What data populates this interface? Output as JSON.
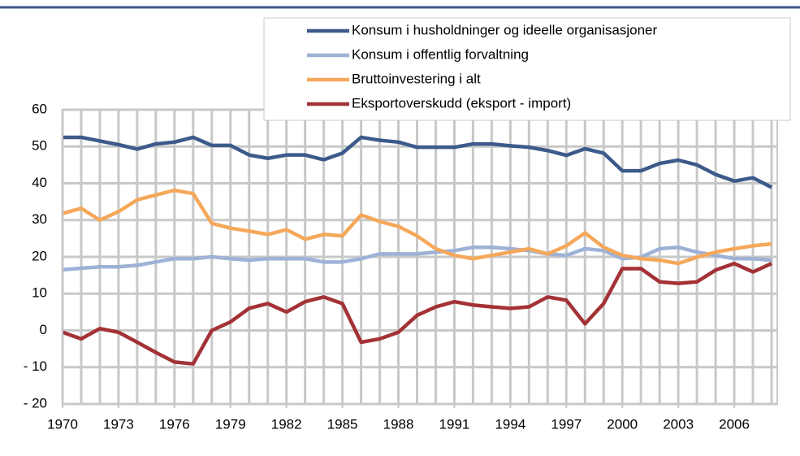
{
  "chart_data": {
    "type": "line",
    "x": [
      1970,
      1971,
      1972,
      1973,
      1974,
      1975,
      1976,
      1977,
      1978,
      1979,
      1980,
      1981,
      1982,
      1983,
      1984,
      1985,
      1986,
      1987,
      1988,
      1989,
      1990,
      1991,
      1992,
      1993,
      1994,
      1995,
      1996,
      1997,
      1998,
      1999,
      2000,
      2001,
      2002,
      2003,
      2004,
      2005,
      2006,
      2007,
      2008
    ],
    "xlim": [
      1970,
      2008
    ],
    "xticks": [
      1970,
      1973,
      1976,
      1979,
      1982,
      1985,
      1988,
      1991,
      1994,
      1997,
      2000,
      2003,
      2006
    ],
    "ylim": [
      -20,
      60
    ],
    "yticks": [
      {
        "value": -20,
        "label": "- 20"
      },
      {
        "value": -10,
        "label": "- 10"
      },
      0,
      10,
      20,
      30,
      40,
      50,
      60
    ],
    "grid": true,
    "legend": "top-right",
    "series": [
      {
        "name": "Konsum i husholdninger og ideelle organisasjoner",
        "color": "#3c5a8a",
        "values": [
          52.5,
          52.5,
          51.5,
          50.5,
          49.3,
          50.7,
          51.2,
          52.5,
          50.3,
          50.3,
          47.7,
          46.8,
          47.7,
          47.7,
          46.4,
          48.2,
          52.5,
          51.7,
          51.2,
          49.8,
          49.8,
          49.8,
          50.7,
          50.7,
          50.2,
          49.8,
          48.9,
          47.6,
          49.4,
          48.2,
          43.4,
          43.4,
          45.4,
          46.3,
          45.0,
          42.4,
          40.6,
          41.5,
          38.9
        ]
      },
      {
        "name": "Konsum i offentlig forvaltning",
        "color": "#9eb1d6",
        "values": [
          16.5,
          16.9,
          17.3,
          17.3,
          17.7,
          18.6,
          19.5,
          19.5,
          20.0,
          19.5,
          19.1,
          19.5,
          19.5,
          19.5,
          18.6,
          18.6,
          19.5,
          20.8,
          20.8,
          20.8,
          21.3,
          21.7,
          22.6,
          22.6,
          22.2,
          21.7,
          20.8,
          20.4,
          22.2,
          21.7,
          19.5,
          19.9,
          22.2,
          22.6,
          21.3,
          20.4,
          19.5,
          19.5,
          19.1
        ]
      },
      {
        "name": "Bruttoinvestering i alt",
        "color": "#f5a85a",
        "values": [
          31.8,
          33.2,
          30.0,
          32.3,
          35.5,
          36.8,
          38.1,
          37.2,
          29.1,
          27.8,
          27.0,
          26.1,
          27.4,
          24.8,
          26.1,
          25.7,
          31.4,
          29.6,
          28.3,
          25.7,
          22.2,
          20.4,
          19.5,
          20.4,
          21.3,
          22.2,
          20.8,
          23.0,
          26.5,
          22.6,
          20.4,
          19.5,
          19.1,
          18.2,
          19.9,
          21.3,
          22.2,
          23.0,
          23.5
        ]
      },
      {
        "name": "Eksportoverskudd (eksport - import)",
        "color": "#a33236",
        "values": [
          -0.5,
          -2.3,
          0.5,
          -0.5,
          -3.2,
          -6.0,
          -8.6,
          -9.1,
          0.0,
          2.3,
          6.0,
          7.3,
          5.0,
          7.8,
          9.1,
          7.3,
          -3.2,
          -2.3,
          -0.5,
          4.1,
          6.4,
          7.8,
          6.9,
          6.4,
          6.0,
          6.4,
          9.1,
          8.2,
          1.8,
          7.3,
          16.8,
          16.8,
          13.2,
          12.8,
          13.2,
          16.4,
          18.2,
          15.9,
          18.2
        ]
      }
    ]
  }
}
